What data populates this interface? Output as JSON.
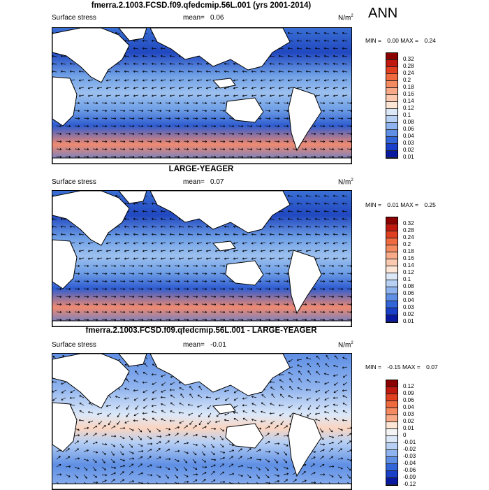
{
  "season": "ANN",
  "panels": [
    {
      "title": "fmerra.2.1003.FCSD.f09.qfedcmip.56L.001 (yrs 2001-2014)",
      "variable": "Surface stress",
      "mean_label": "mean=",
      "mean_value": "0.06",
      "units": "N/m",
      "units_sup": "2",
      "min_label": "MIN =",
      "min_value": "0.00",
      "max_label": "MAX =",
      "max_value": "0.24",
      "colorbar_levels": [
        "0.32",
        "0.28",
        "0.24",
        "0.2",
        "0.18",
        "0.16",
        "0.14",
        "0.12",
        "0.1",
        "0.08",
        "0.06",
        "0.04",
        "0.03",
        "0.02",
        "0.01"
      ]
    },
    {
      "title": "LARGE-YEAGER",
      "variable": "Surface stress",
      "mean_label": "mean=",
      "mean_value": "0.07",
      "units": "N/m",
      "units_sup": "2",
      "min_label": "MIN =",
      "min_value": "0.01",
      "max_label": "MAX =",
      "max_value": "0.25",
      "colorbar_levels": [
        "0.32",
        "0.28",
        "0.24",
        "0.2",
        "0.18",
        "0.16",
        "0.14",
        "0.12",
        "0.1",
        "0.08",
        "0.06",
        "0.04",
        "0.03",
        "0.02",
        "0.01"
      ]
    },
    {
      "title": "fmerra.2.1003.FCSD.f09.qfedcmip.56L.001 - LARGE-YEAGER",
      "variable": "Surface stress",
      "mean_label": "mean=",
      "mean_value": "-0.01",
      "units": "N/m",
      "units_sup": "2",
      "min_label": "MIN =",
      "min_value": "-0.15",
      "max_label": "MAX =",
      "max_value": "0.07",
      "colorbar_levels": [
        "0.12",
        "0.09",
        "0.06",
        "0.04",
        "0.03",
        "0.02",
        "0.01",
        "0",
        "-0.01",
        "-0.02",
        "-0.03",
        "-0.04",
        "-0.06",
        "-0.09",
        "-0.12"
      ]
    }
  ],
  "colors": {
    "abs_scale": [
      "#8b0000",
      "#c0190f",
      "#e04020",
      "#f06a40",
      "#f48a60",
      "#f8aa88",
      "#fbc8b0",
      "#fde6d6",
      "#dce8f8",
      "#b8d0f4",
      "#8fb3ee",
      "#5f8fe4",
      "#3266d8",
      "#1a3fc8",
      "#0a1aa0"
    ],
    "diff_scale": [
      "#8b0000",
      "#c0190f",
      "#e04020",
      "#f06a40",
      "#f48a60",
      "#f8aa88",
      "#fde6d6",
      "#f4f4f4",
      "#dce8f8",
      "#b8d0f4",
      "#8fb3ee",
      "#5f8fe4",
      "#3266d8",
      "#1a3fc8",
      "#0a1aa0"
    ],
    "land": "#ffffff",
    "coast": "#000000",
    "arrow": "#000000"
  }
}
